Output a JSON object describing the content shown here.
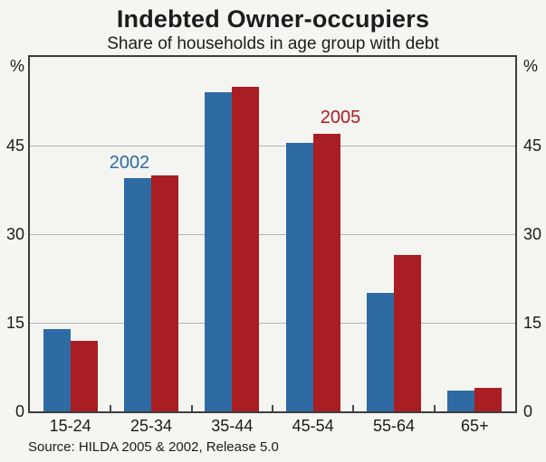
{
  "page": {
    "title": "Indebted Owner-occupiers",
    "subtitle": "Share of households in age group with debt",
    "source": "Source: HILDA 2005 & 2002, Release 5.0"
  },
  "axis": {
    "unit": "%"
  },
  "series_labels": {
    "s2002": "2002",
    "s2005": "2005"
  },
  "chart_data": {
    "type": "bar",
    "title": "Indebted Owner-occupiers",
    "subtitle": "Share of households in age group with debt",
    "categories": [
      "15-24",
      "25-34",
      "35-44",
      "45-54",
      "55-64",
      "65+"
    ],
    "series": [
      {
        "name": "2002",
        "color": "#2e6ba4",
        "values": [
          14,
          39.5,
          54,
          45.5,
          20,
          3.5
        ]
      },
      {
        "name": "2005",
        "color": "#a91e22",
        "values": [
          12,
          40,
          55,
          47,
          26.5,
          4
        ]
      }
    ],
    "ylabel": "%",
    "ylim": [
      0,
      60
    ],
    "yticks": [
      0,
      15,
      30,
      45
    ],
    "grid": true,
    "legend_position": "inline-annotations",
    "source": "Source: HILDA 2005 & 2002, Release 5.0"
  }
}
